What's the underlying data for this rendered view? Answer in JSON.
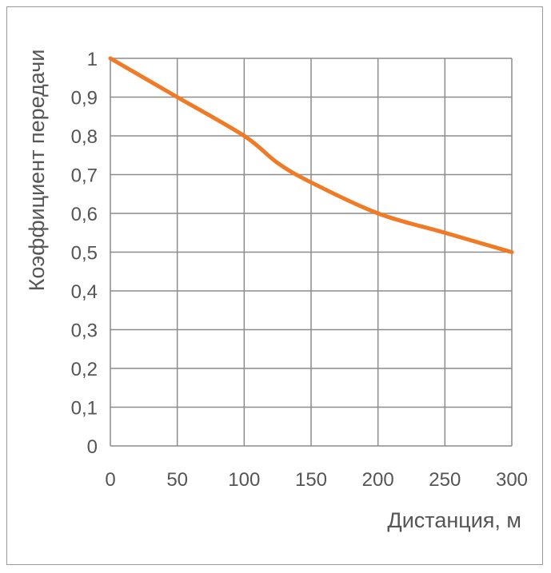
{
  "chart_data": {
    "type": "line",
    "title": "",
    "xlabel": "Дистанция, м",
    "ylabel": "Коэффициент передачи",
    "xlim": [
      0,
      300
    ],
    "ylim": [
      0,
      1
    ],
    "x_ticks": [
      "0",
      "50",
      "100",
      "150",
      "200",
      "250",
      "300"
    ],
    "y_ticks": [
      "0",
      "0,1",
      "0,2",
      "0,3",
      "0,4",
      "0,5",
      "0,6",
      "0,7",
      "0,8",
      "0,9",
      "1"
    ],
    "grid": true,
    "series": [
      {
        "color": "#f07a25",
        "x": [
          0,
          50,
          100,
          125,
          150,
          200,
          250,
          300
        ],
        "y": [
          1.0,
          0.9,
          0.8,
          0.73,
          0.68,
          0.6,
          0.55,
          0.5
        ]
      }
    ]
  },
  "colors": {
    "grid": "#8c8c8c",
    "line": "#f07a25",
    "text": "#555555"
  }
}
